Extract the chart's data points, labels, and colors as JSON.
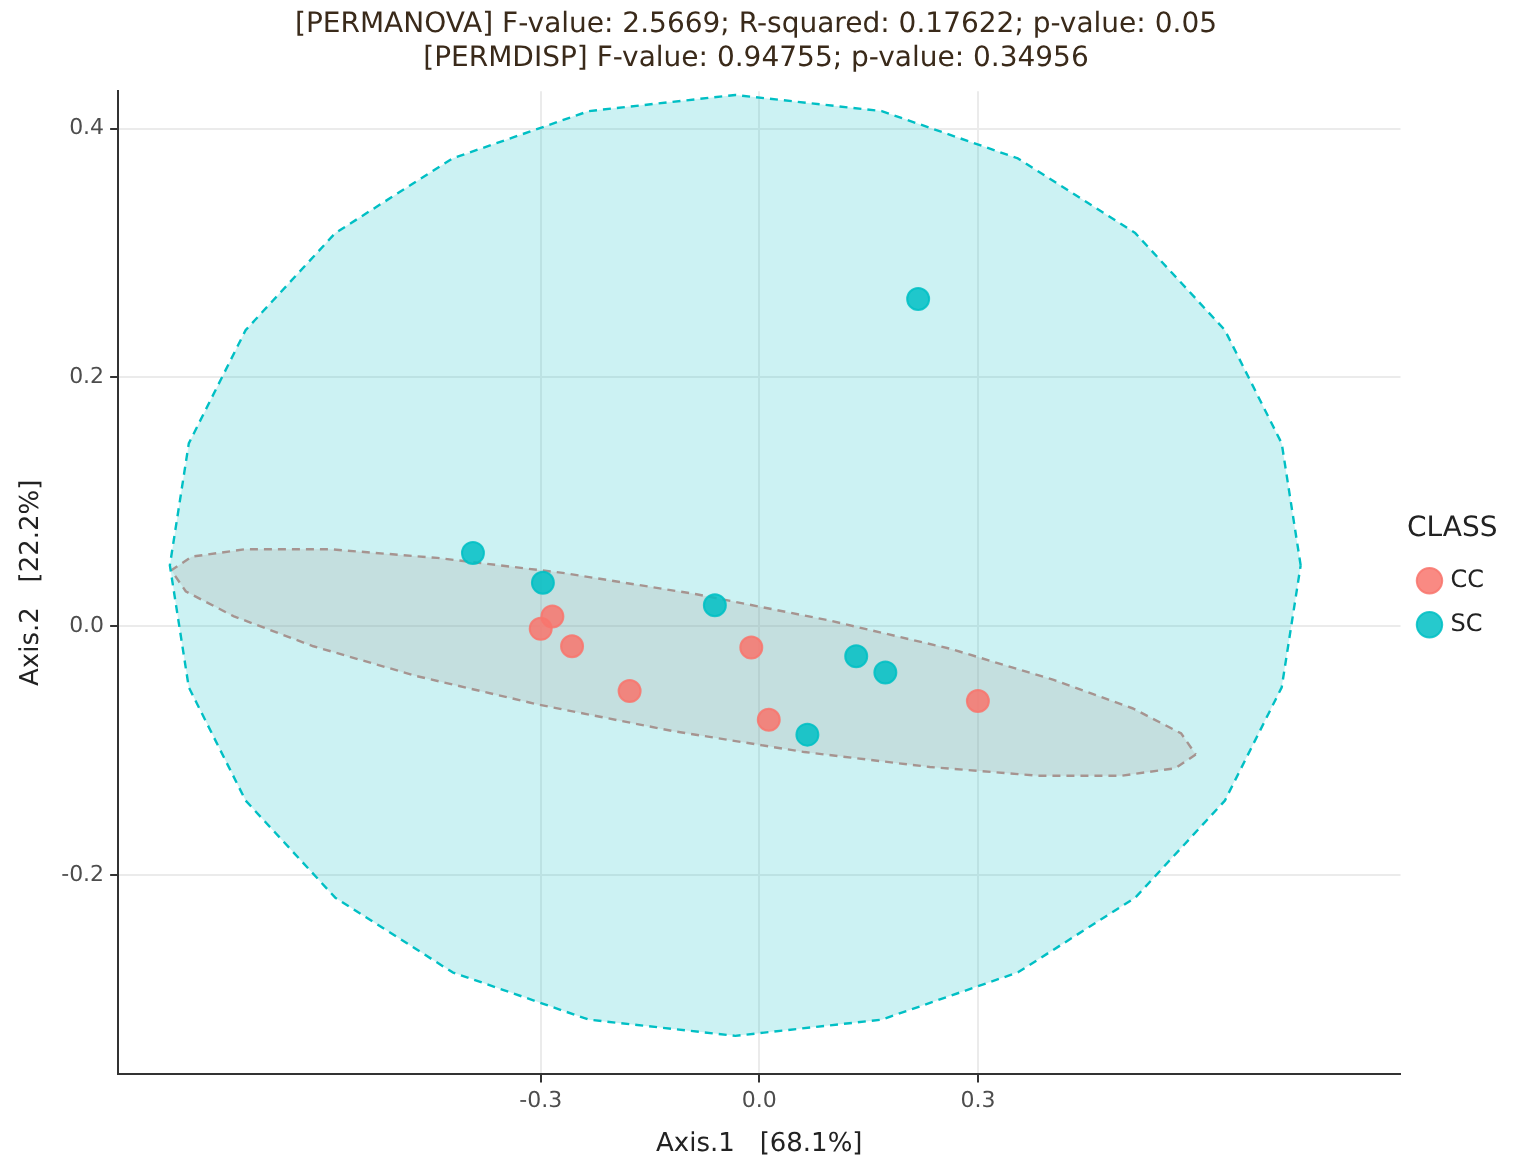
{
  "chart_data": {
    "type": "scatter",
    "title": "[PERMANOVA] F-value: 2.5669; R-squared: 0.17622; p-value: 0.05",
    "subtitle": "[PERMDISP] F-value: 0.94755; p-value: 0.34956",
    "xlabel": "Axis.1   [68.1%]",
    "ylabel": "Axis.2   [22.2%]",
    "legend_title": "CLASS",
    "legend": "right",
    "grid": true,
    "xlim": [
      -0.88,
      0.88
    ],
    "xticks": [
      -0.3,
      {
        "value": 0,
        "label": "0.0"
      },
      0.3
    ],
    "ylim": [
      -0.36,
      0.43
    ],
    "yticks": [
      -0.2,
      {
        "value": 0,
        "label": "0.0"
      },
      0.2,
      0.4
    ],
    "series": [
      {
        "type": "area",
        "color": "#00bfc4",
        "line_style": "dashed",
        "marker": "none",
        "x": [
          0.743,
          0.717,
          0.639,
          0.516,
          0.355,
          0.168,
          -0.033,
          -0.234,
          -0.421,
          -0.582,
          -0.705,
          -0.783,
          -0.809,
          -0.783,
          -0.705,
          -0.582,
          -0.421,
          -0.234,
          -0.033,
          0.168,
          0.355,
          0.516,
          0.639,
          0.717,
          0.743
        ],
        "values": [
          0.049,
          0.147,
          0.238,
          0.316,
          0.376,
          0.414,
          0.427,
          0.414,
          0.376,
          0.316,
          0.238,
          0.147,
          0.049,
          -0.049,
          -0.14,
          -0.218,
          -0.278,
          -0.316,
          -0.329,
          -0.316,
          -0.278,
          -0.218,
          -0.14,
          -0.049,
          0.049
        ]
      },
      {
        "type": "area",
        "color": "#d08a84",
        "line_style": "dashed",
        "marker": "none",
        "x": [
          0.599,
          0.571,
          0.497,
          0.382,
          0.234,
          0.062,
          -0.12,
          -0.302,
          -0.47,
          -0.612,
          -0.721,
          -0.787,
          -0.807,
          -0.779,
          -0.705,
          -0.59,
          -0.442,
          -0.27,
          -0.088,
          0.094,
          0.262,
          0.404,
          0.513,
          0.579,
          0.599
        ],
        "values": [
          -0.103,
          -0.114,
          -0.12,
          -0.12,
          -0.113,
          -0.101,
          -0.084,
          -0.063,
          -0.04,
          -0.016,
          0.008,
          0.028,
          0.045,
          0.056,
          0.062,
          0.062,
          0.055,
          0.043,
          0.026,
          0.005,
          -0.018,
          -0.043,
          -0.066,
          -0.086,
          -0.103
        ]
      },
      {
        "type": "scatter",
        "name": "CC",
        "color": "#f8766d",
        "marker": "circle",
        "x": [
          -0.3,
          -0.284,
          -0.257,
          -0.178,
          -0.011,
          0.013,
          0.3
        ],
        "values": [
          -0.002,
          0.008,
          -0.016,
          -0.052,
          -0.017,
          -0.075,
          -0.06
        ]
      },
      {
        "type": "scatter",
        "name": "SC",
        "color": "#00bfc4",
        "marker": "circle",
        "x": [
          0.218,
          -0.393,
          -0.297,
          -0.061,
          0.133,
          0.173,
          0.066
        ],
        "values": [
          0.263,
          0.059,
          0.035,
          0.017,
          -0.024,
          -0.037,
          -0.087
        ]
      }
    ]
  }
}
